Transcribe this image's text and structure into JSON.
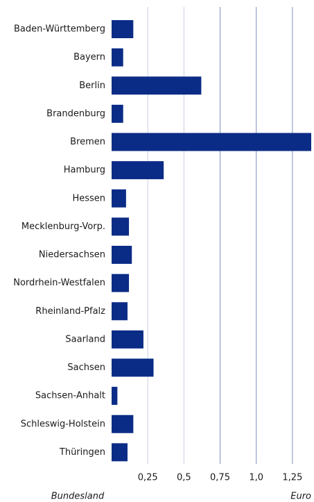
{
  "chart_data": {
    "type": "bar",
    "orientation": "horizontal",
    "categories": [
      "Baden-Württemberg",
      "Bayern",
      "Berlin",
      "Brandenburg",
      "Bremen",
      "Hamburg",
      "Hessen",
      "Mecklenburg-Vorp.",
      "Niedersachsen",
      "Nordrhein-Westfalen",
      "Rheinland-Pfalz",
      "Saarland",
      "Sachsen",
      "Sachsen-Anhalt",
      "Schleswig-Holstein",
      "Thüringen"
    ],
    "values": [
      0.15,
      0.08,
      0.62,
      0.08,
      1.38,
      0.36,
      0.1,
      0.12,
      0.14,
      0.12,
      0.11,
      0.22,
      0.29,
      0.04,
      0.15,
      0.11
    ],
    "color": "#0b2c86",
    "xlim": [
      0,
      1.38
    ],
    "xticks": [
      {
        "value": 0.25,
        "label": "0,25"
      },
      {
        "value": 0.5,
        "label": "0,5"
      },
      {
        "value": 0.75,
        "label": "0,75"
      },
      {
        "value": 1.0,
        "label": "1,0"
      },
      {
        "value": 1.25,
        "label": "1,25"
      }
    ],
    "grid": true,
    "xlabel": "Euro",
    "ylabel": "Bundesland"
  }
}
